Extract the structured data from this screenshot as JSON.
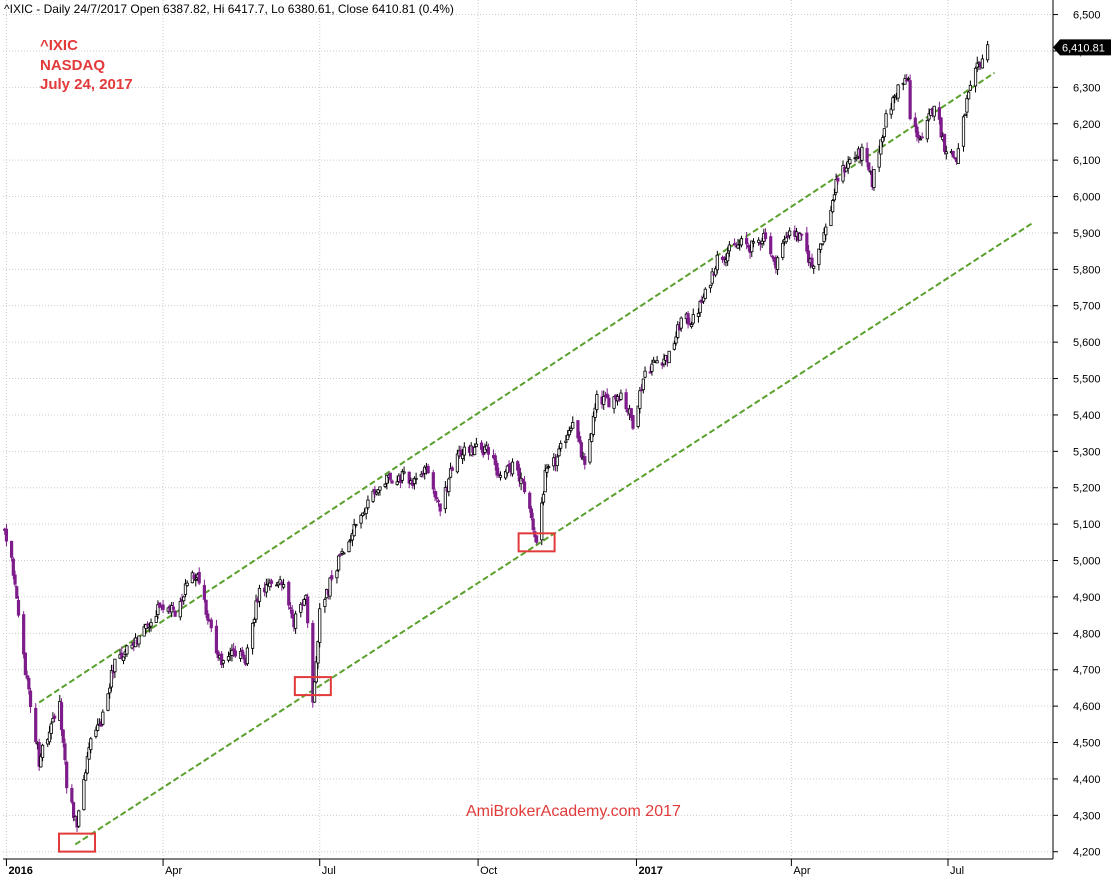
{
  "header": {
    "text": "^IXIC - Daily 24/7/2017 Open 6387.82, Hi 6417.7, Lo 6380.61, Close 6410.81 (0.4%)"
  },
  "annotation": {
    "symbol": "^IXIC",
    "name": "NASDAQ",
    "date": "July 24, 2017",
    "color": "#e23a3a"
  },
  "watermark": {
    "text": "AmiBrokerAcademy.com  2017",
    "color": "#e23a3a"
  },
  "last_price_label": "6,410.81",
  "colors": {
    "up_candle": "#000000",
    "down_candle": "#7d1d8a",
    "channel": "#5aa02c",
    "marker": "#e23a3a",
    "grid": "#cccccc",
    "axis": "#000000"
  },
  "chart_data": {
    "type": "candlestick",
    "x_range": [
      "2015-12-30",
      "2017-08-31"
    ],
    "ylim": [
      4180,
      6540
    ],
    "grid": true,
    "y_ticks": [
      {
        "value": 4200,
        "label": "4,200"
      },
      {
        "value": 4300,
        "label": "4,300"
      },
      {
        "value": 4400,
        "label": "4,400"
      },
      {
        "value": 4500,
        "label": "4,500"
      },
      {
        "value": 4600,
        "label": "4,600"
      },
      {
        "value": 4700,
        "label": "4,700"
      },
      {
        "value": 4800,
        "label": "4,800"
      },
      {
        "value": 4900,
        "label": "4,900"
      },
      {
        "value": 5000,
        "label": "5,000"
      },
      {
        "value": 5100,
        "label": "5,100"
      },
      {
        "value": 5200,
        "label": "5,200"
      },
      {
        "value": 5300,
        "label": "5,300"
      },
      {
        "value": 5400,
        "label": "5,400"
      },
      {
        "value": 5500,
        "label": "5,500"
      },
      {
        "value": 5600,
        "label": "5,600"
      },
      {
        "value": 5700,
        "label": "5,700"
      },
      {
        "value": 5800,
        "label": "5,800"
      },
      {
        "value": 5900,
        "label": "5,900"
      },
      {
        "value": 6000,
        "label": "6,000"
      },
      {
        "value": 6100,
        "label": "6,100"
      },
      {
        "value": 6200,
        "label": "6,200"
      },
      {
        "value": 6300,
        "label": "6,300"
      },
      {
        "value": 6400,
        "label": "6,400"
      },
      {
        "value": 6500,
        "label": "6,500"
      }
    ],
    "x_ticks": [
      {
        "date": "2016-01-01",
        "label": "2016",
        "bold": true
      },
      {
        "date": "2016-04-01",
        "label": "Apr",
        "bold": false
      },
      {
        "date": "2016-07-01",
        "label": "Jul",
        "bold": false
      },
      {
        "date": "2016-10-01",
        "label": "Oct",
        "bold": false
      },
      {
        "date": "2017-01-01",
        "label": "2017",
        "bold": true
      },
      {
        "date": "2017-04-01",
        "label": "Apr",
        "bold": false
      },
      {
        "date": "2017-07-01",
        "label": "Jul",
        "bold": false
      }
    ],
    "price_path": [
      [
        "2015-12-31",
        5080
      ],
      [
        "2016-01-04",
        5000
      ],
      [
        "2016-01-08",
        4860
      ],
      [
        "2016-01-12",
        4700
      ],
      [
        "2016-01-20",
        4450
      ],
      [
        "2016-01-26",
        4540
      ],
      [
        "2016-02-01",
        4600
      ],
      [
        "2016-02-05",
        4380
      ],
      [
        "2016-02-11",
        4270
      ],
      [
        "2016-02-18",
        4500
      ],
      [
        "2016-02-25",
        4560
      ],
      [
        "2016-03-04",
        4720
      ],
      [
        "2016-03-14",
        4760
      ],
      [
        "2016-03-22",
        4820
      ],
      [
        "2016-04-01",
        4880
      ],
      [
        "2016-04-08",
        4860
      ],
      [
        "2016-04-15",
        4940
      ],
      [
        "2016-04-21",
        4960
      ],
      [
        "2016-04-28",
        4820
      ],
      [
        "2016-05-05",
        4720
      ],
      [
        "2016-05-12",
        4760
      ],
      [
        "2016-05-19",
        4720
      ],
      [
        "2016-05-26",
        4900
      ],
      [
        "2016-06-03",
        4950
      ],
      [
        "2016-06-10",
        4940
      ],
      [
        "2016-06-16",
        4830
      ],
      [
        "2016-06-23",
        4900
      ],
      [
        "2016-06-27",
        4600
      ],
      [
        "2016-07-01",
        4860
      ],
      [
        "2016-07-08",
        4950
      ],
      [
        "2016-07-15",
        5030
      ],
      [
        "2016-07-22",
        5100
      ],
      [
        "2016-07-29",
        5160
      ],
      [
        "2016-08-08",
        5220
      ],
      [
        "2016-08-16",
        5230
      ],
      [
        "2016-08-24",
        5220
      ],
      [
        "2016-09-01",
        5250
      ],
      [
        "2016-09-09",
        5140
      ],
      [
        "2016-09-16",
        5250
      ],
      [
        "2016-09-23",
        5310
      ],
      [
        "2016-09-30",
        5310
      ],
      [
        "2016-10-07",
        5300
      ],
      [
        "2016-10-14",
        5230
      ],
      [
        "2016-10-21",
        5260
      ],
      [
        "2016-10-28",
        5200
      ],
      [
        "2016-11-04",
        5050
      ],
      [
        "2016-11-09",
        5230
      ],
      [
        "2016-11-16",
        5280
      ],
      [
        "2016-11-25",
        5390
      ],
      [
        "2016-12-02",
        5250
      ],
      [
        "2016-12-09",
        5440
      ],
      [
        "2016-12-16",
        5440
      ],
      [
        "2016-12-23",
        5460
      ],
      [
        "2016-12-30",
        5380
      ],
      [
        "2017-01-06",
        5520
      ],
      [
        "2017-01-13",
        5550
      ],
      [
        "2017-01-20",
        5560
      ],
      [
        "2017-01-27",
        5660
      ],
      [
        "2017-02-03",
        5660
      ],
      [
        "2017-02-10",
        5730
      ],
      [
        "2017-02-17",
        5830
      ],
      [
        "2017-02-24",
        5850
      ],
      [
        "2017-03-03",
        5870
      ],
      [
        "2017-03-10",
        5860
      ],
      [
        "2017-03-17",
        5900
      ],
      [
        "2017-03-22",
        5810
      ],
      [
        "2017-03-31",
        5910
      ],
      [
        "2017-04-07",
        5880
      ],
      [
        "2017-04-13",
        5810
      ],
      [
        "2017-04-21",
        5910
      ],
      [
        "2017-04-28",
        6050
      ],
      [
        "2017-05-05",
        6100
      ],
      [
        "2017-05-12",
        6120
      ],
      [
        "2017-05-18",
        6040
      ],
      [
        "2017-05-25",
        6200
      ],
      [
        "2017-06-02",
        6300
      ],
      [
        "2017-06-08",
        6320
      ],
      [
        "2017-06-09",
        6210
      ],
      [
        "2017-06-16",
        6150
      ],
      [
        "2017-06-23",
        6260
      ],
      [
        "2017-06-29",
        6140
      ],
      [
        "2017-07-06",
        6100
      ],
      [
        "2017-07-12",
        6260
      ],
      [
        "2017-07-18",
        6350
      ],
      [
        "2017-07-24",
        6410
      ]
    ],
    "channel_lines": [
      {
        "name": "upper",
        "points": [
          [
            "2016-01-20",
            4610
          ],
          [
            "2017-07-28",
            6340
          ]
        ]
      },
      {
        "name": "lower",
        "points": [
          [
            "2016-02-10",
            4220
          ],
          [
            "2017-08-20",
            5930
          ]
        ]
      }
    ],
    "markers": [
      {
        "date": "2016-02-11",
        "value": 4225
      },
      {
        "date": "2016-06-27",
        "value": 4655
      },
      {
        "date": "2016-11-04",
        "value": 5050
      }
    ]
  }
}
